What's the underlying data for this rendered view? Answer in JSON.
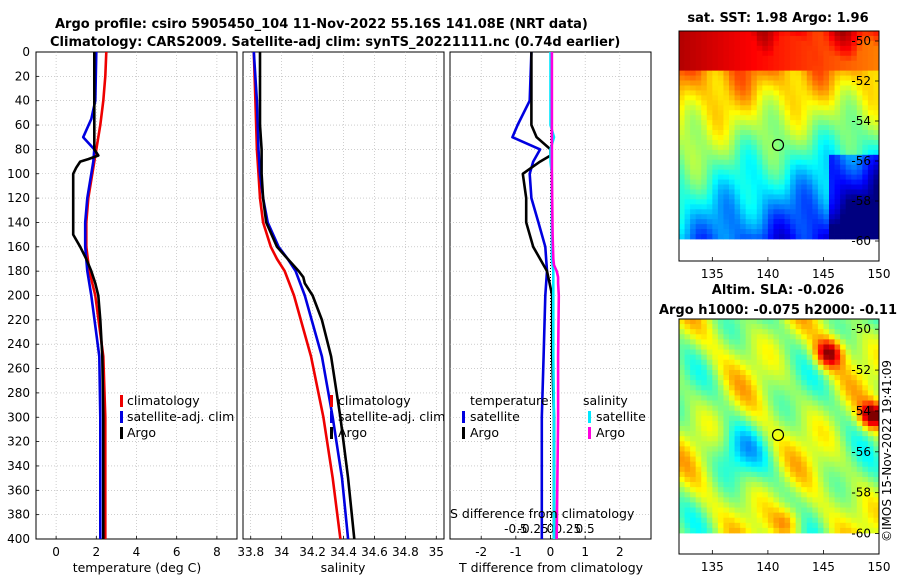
{
  "header": {
    "line1": "Argo profile: csiro 5905450_104 11-Nov-2022 55.16S 141.08E (NRT data)",
    "line2": "Climatology: CARS2009. Satellite-adj clim: synTS_20221111.nc (0.74d earlier)"
  },
  "colors": {
    "red": "#ee0000",
    "blue": "#0000e0",
    "black": "#000000",
    "cyan": "#00e8ff",
    "magenta": "#ff00e0"
  },
  "chart_data": [
    {
      "id": "temperature",
      "type": "line",
      "xlabel": "temperature (deg C)",
      "xlim": [
        -1,
        9
      ],
      "xticks": [
        "0",
        "2",
        "4",
        "6",
        "8"
      ],
      "ylim": [
        400,
        0
      ],
      "yticks": [
        "0",
        "20",
        "40",
        "60",
        "80",
        "100",
        "120",
        "140",
        "160",
        "180",
        "200",
        "220",
        "240",
        "260",
        "280",
        "300",
        "320",
        "340",
        "360",
        "380",
        "400"
      ],
      "legend": [
        "climatology",
        "satellite-adj. clim",
        "Argo"
      ],
      "series": [
        {
          "name": "climatology",
          "color": "red",
          "depth": [
            0,
            20,
            40,
            60,
            80,
            100,
            120,
            140,
            160,
            180,
            200,
            250,
            300,
            350,
            400
          ],
          "values": [
            2.5,
            2.45,
            2.35,
            2.2,
            2.0,
            1.8,
            1.6,
            1.5,
            1.5,
            1.65,
            1.95,
            2.35,
            2.45,
            2.45,
            2.45
          ]
        },
        {
          "name": "satellite-adj. clim",
          "color": "blue",
          "depth": [
            0,
            40,
            55,
            70,
            80,
            90,
            100,
            120,
            140,
            160,
            180,
            200,
            250,
            300,
            350,
            400
          ],
          "values": [
            2.0,
            1.95,
            1.75,
            1.35,
            1.9,
            1.85,
            1.75,
            1.55,
            1.45,
            1.45,
            1.55,
            1.75,
            2.15,
            2.2,
            2.2,
            2.2
          ]
        },
        {
          "name": "Argo",
          "color": "black",
          "depth": [
            0,
            80,
            85,
            88,
            90,
            95,
            100,
            110,
            120,
            130,
            140,
            150,
            160,
            170,
            180,
            190,
            200,
            220,
            250,
            300,
            350,
            400
          ],
          "values": [
            1.9,
            1.9,
            2.1,
            1.6,
            1.2,
            1.0,
            0.85,
            0.85,
            0.85,
            0.85,
            0.85,
            0.85,
            1.2,
            1.5,
            1.75,
            1.95,
            2.1,
            2.2,
            2.3,
            2.35,
            2.35,
            2.35
          ]
        }
      ]
    },
    {
      "id": "salinity",
      "type": "line",
      "xlabel": "salinity",
      "xlim": [
        33.75,
        35.05
      ],
      "xticks": [
        "33.8",
        "34",
        "34.2",
        "34.4",
        "34.6",
        "34.8",
        "35"
      ],
      "ylim": [
        400,
        0
      ],
      "legend": [
        "climatology",
        "satellite-adj. clim",
        "Argo"
      ],
      "series": [
        {
          "name": "climatology",
          "color": "red",
          "depth": [
            0,
            40,
            80,
            100,
            120,
            140,
            160,
            170,
            180,
            200,
            250,
            300,
            350,
            400
          ],
          "values": [
            33.82,
            33.83,
            33.84,
            33.85,
            33.86,
            33.88,
            33.93,
            33.97,
            34.02,
            34.08,
            34.19,
            34.27,
            34.33,
            34.38
          ]
        },
        {
          "name": "satellite-adj. clim",
          "color": "blue",
          "depth": [
            0,
            40,
            80,
            100,
            120,
            140,
            160,
            170,
            180,
            200,
            250,
            300,
            350,
            400
          ],
          "values": [
            33.82,
            33.84,
            33.85,
            33.86,
            33.88,
            33.91,
            33.98,
            34.04,
            34.09,
            34.15,
            34.26,
            34.33,
            34.39,
            34.43
          ]
        },
        {
          "name": "Argo",
          "color": "black",
          "depth": [
            0,
            60,
            80,
            100,
            120,
            140,
            160,
            170,
            180,
            185,
            190,
            200,
            220,
            250,
            300,
            350,
            400
          ],
          "values": [
            33.86,
            33.86,
            33.87,
            33.87,
            33.88,
            33.9,
            33.97,
            34.04,
            34.11,
            34.14,
            34.15,
            34.2,
            34.26,
            34.32,
            34.38,
            34.43,
            34.47
          ]
        }
      ]
    },
    {
      "id": "differences",
      "type": "line",
      "xlabel": "T difference from climatology",
      "xlabel_top": "S difference from climatology",
      "xlim": [
        -2.9,
        2.9
      ],
      "xticks": [
        "-2",
        "-1",
        "0",
        "1",
        "2"
      ],
      "xticks_top": [
        "-0.5",
        "-0.25",
        "0",
        "0.25",
        "0.5"
      ],
      "ylim": [
        400,
        0
      ],
      "legend_left": [
        "temperature",
        "satellite",
        "Argo"
      ],
      "legend_right": [
        "salinity",
        "satellite",
        "Argo"
      ],
      "series": [
        {
          "name": "temperature satellite",
          "color": "blue",
          "depth": [
            0,
            40,
            60,
            70,
            80,
            90,
            100,
            120,
            140,
            160,
            180,
            200,
            250,
            300,
            350,
            400
          ],
          "values": [
            -0.55,
            -0.6,
            -0.95,
            -1.1,
            -0.3,
            -0.5,
            -0.6,
            -0.55,
            -0.35,
            -0.15,
            -0.1,
            -0.15,
            -0.2,
            -0.25,
            -0.25,
            -0.25
          ]
        },
        {
          "name": "temperature Argo",
          "color": "black",
          "depth": [
            0,
            20,
            40,
            60,
            70,
            80,
            85,
            90,
            95,
            100,
            120,
            140,
            160,
            180,
            200,
            220,
            250,
            300,
            350,
            400
          ],
          "values": [
            -0.55,
            -0.55,
            -0.55,
            -0.55,
            -0.4,
            0.0,
            0.0,
            -0.3,
            -0.55,
            -0.8,
            -0.7,
            -0.7,
            -0.5,
            -0.1,
            0.05,
            0.05,
            0.05,
            0.1,
            0.1,
            0.1
          ]
        },
        {
          "name": "salinity satellite",
          "color": "cyan",
          "depth": [
            0,
            60,
            70,
            80,
            90,
            100,
            150,
            170,
            180,
            200,
            250,
            300,
            350,
            400
          ],
          "values": [
            0.0,
            0.0,
            0.05,
            0.0,
            0.0,
            0.02,
            0.02,
            0.02,
            0.04,
            0.04,
            0.04,
            0.05,
            0.05,
            0.05
          ]
        },
        {
          "name": "salinity Argo",
          "color": "magenta",
          "depth": [
            0,
            60,
            80,
            100,
            150,
            170,
            175,
            180,
            185,
            190,
            200,
            250,
            300,
            350,
            400
          ],
          "values": [
            0.02,
            0.02,
            0.02,
            0.02,
            0.03,
            0.04,
            0.05,
            0.09,
            0.11,
            0.11,
            0.12,
            0.11,
            0.11,
            0.1,
            0.09
          ]
        }
      ]
    },
    {
      "id": "sst_map",
      "type": "heatmap",
      "title": "sat. SST: 1.98 Argo: 1.96",
      "xticks": [
        "135",
        "140",
        "145",
        "150"
      ],
      "yticks": [
        "-50",
        "-52",
        "-54",
        "-56",
        "-58",
        "-60"
      ],
      "lon_range": [
        132,
        150
      ],
      "lat_range": [
        -61,
        -49.5
      ],
      "marker": {
        "lon": 141.08,
        "lat": -55.16
      }
    },
    {
      "id": "sla_map",
      "type": "heatmap",
      "title": "Altim. SLA: -0.026",
      "subtitle": "Argo h1000: -0.075 h2000: -0.11",
      "xticks": [
        "135",
        "140",
        "145",
        "150"
      ],
      "yticks": [
        "-50",
        "-52",
        "-54",
        "-56",
        "-58",
        "-60"
      ],
      "lon_range": [
        132,
        150
      ],
      "lat_range": [
        -61,
        -49.5
      ],
      "marker": {
        "lon": 141.08,
        "lat": -55.16
      }
    }
  ],
  "footer": {
    "credit": "©IMOS 15-Nov-2022 19:41:09"
  }
}
